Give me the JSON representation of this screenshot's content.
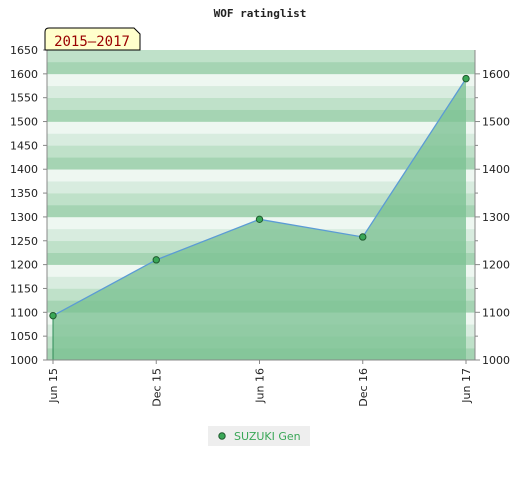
{
  "chart_data": {
    "type": "area",
    "title": "WOF ratinglist",
    "period_badge": "2015–2017",
    "x": [
      "Jun 15",
      "Dec 15",
      "Jun 16",
      "Dec 16",
      "Jun 17"
    ],
    "series": [
      {
        "name": "SUZUKI Gen",
        "values": [
          1093,
          1210,
          1295,
          1258,
          1590
        ]
      }
    ],
    "ylim": [
      1000,
      1650
    ],
    "y_ticks_left": [
      "1000",
      "1050",
      "1100",
      "1150",
      "1200",
      "1250",
      "1300",
      "1350",
      "1400",
      "1450",
      "1500",
      "1550",
      "1600",
      "1650"
    ],
    "y_ticks_right": [
      "1000",
      "1100",
      "1200",
      "1300",
      "1400",
      "1500",
      "1600"
    ],
    "grid": true,
    "legend_position": "bottom",
    "colors": {
      "fill": "#7cc294",
      "line": "#5b9bd5",
      "marker": "#3aa757",
      "badge_bg": "#ffffcc",
      "badge_text": "#990000",
      "legend_text": "#3aa757",
      "legend_bg": "#eeeeee"
    }
  }
}
